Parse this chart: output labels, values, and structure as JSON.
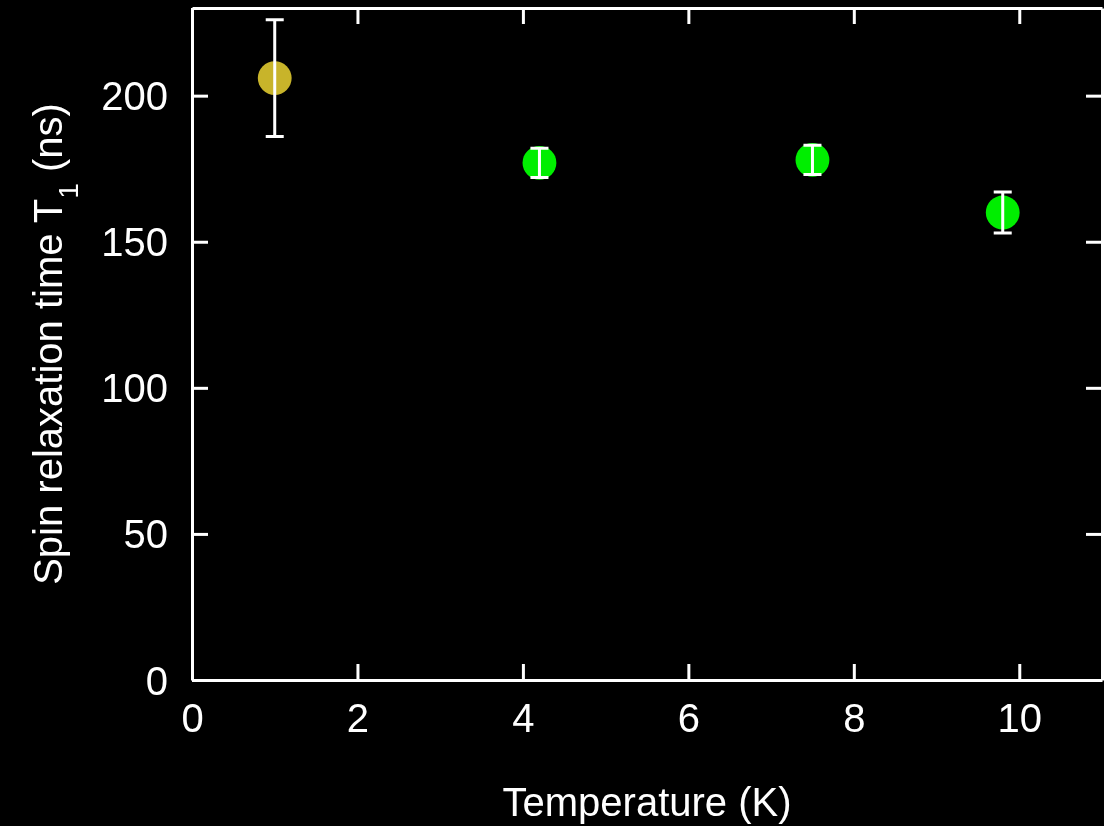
{
  "chart_data": {
    "type": "scatter",
    "xlabel": "Temperature (K)",
    "ylabel": "Spin relaxation time T$_{1}$ (ns)",
    "x": [
      1,
      4.2,
      7.5,
      9.8
    ],
    "values": [
      206,
      177,
      178,
      160
    ],
    "errors": [
      20,
      5,
      5,
      7
    ],
    "colors": [
      "#c8b42a",
      "#00ee00",
      "#00ee00",
      "#00ee00"
    ],
    "marker": "circle",
    "xlim": [
      0,
      11
    ],
    "xticks": [
      0,
      2,
      4,
      6,
      8,
      10
    ],
    "ylim": [
      0,
      230
    ],
    "yticks": [
      0,
      50,
      100,
      150,
      200
    ],
    "grid": false
  }
}
